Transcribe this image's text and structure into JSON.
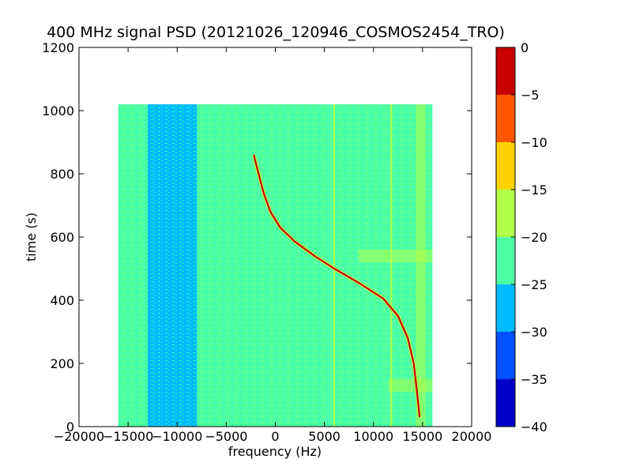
{
  "chart_data": {
    "type": "heatmap",
    "title": "400 MHz signal PSD (20121026_120946_COSMOS2454_TRO)",
    "xlabel": "frequency (Hz)",
    "ylabel": "time (s)",
    "xlim": [
      -20000,
      20000
    ],
    "ylim": [
      0,
      1200
    ],
    "xticks": [
      -20000,
      -15000,
      -10000,
      -5000,
      0,
      5000,
      10000,
      15000,
      20000
    ],
    "xtick_labels": [
      "−20000",
      "−15000",
      "−10000",
      "−5000",
      "0",
      "5000",
      "10000",
      "15000",
      "20000"
    ],
    "yticks": [
      0,
      200,
      400,
      600,
      800,
      1000,
      1200
    ],
    "ytick_labels": [
      "0",
      "200",
      "400",
      "600",
      "800",
      "1000",
      "1200"
    ],
    "data_extent": {
      "x": [
        -16000,
        16000
      ],
      "y": [
        0,
        1020
      ]
    },
    "background_level": -22.5,
    "features": [
      {
        "name": "low-power band",
        "x_range": [
          -13000,
          -8000
        ],
        "level": -27.5
      },
      {
        "name": "vertical line",
        "x": 6000,
        "level": -17.5
      },
      {
        "name": "vertical line",
        "x": 11800,
        "level": -17.5
      },
      {
        "name": "vertical band",
        "x_range": [
          14300,
          15300
        ],
        "level": -17.5
      },
      {
        "name": "horizontal band",
        "y_range": [
          520,
          560
        ],
        "x_range": [
          8500,
          16000
        ],
        "level": -17.5
      },
      {
        "name": "horizontal band",
        "y_range": [
          110,
          150
        ],
        "x_range": [
          11500,
          16000
        ],
        "level": -17.5
      }
    ],
    "signal_trace": {
      "x": [
        -2200,
        -1700,
        -1200,
        -500,
        500,
        2000,
        4000,
        6000,
        8500,
        11000,
        12500,
        13500,
        14100,
        14400,
        14600,
        14700
      ],
      "y": [
        860,
        800,
        740,
        680,
        630,
        585,
        540,
        500,
        455,
        405,
        350,
        280,
        200,
        120,
        60,
        30
      ],
      "level": 0
    },
    "colorbar": {
      "levels": [
        -40,
        -35,
        -30,
        -25,
        -20,
        -15,
        -10,
        -5,
        0
      ],
      "tick_labels": [
        "−40",
        "−35",
        "−30",
        "−25",
        "−20",
        "−15",
        "−10",
        "−5",
        "0"
      ],
      "colors": [
        "#0000c8",
        "#0050ff",
        "#00bcff",
        "#4dffa5",
        "#b0ff48",
        "#ffd200",
        "#ff5500",
        "#c80000"
      ]
    }
  }
}
